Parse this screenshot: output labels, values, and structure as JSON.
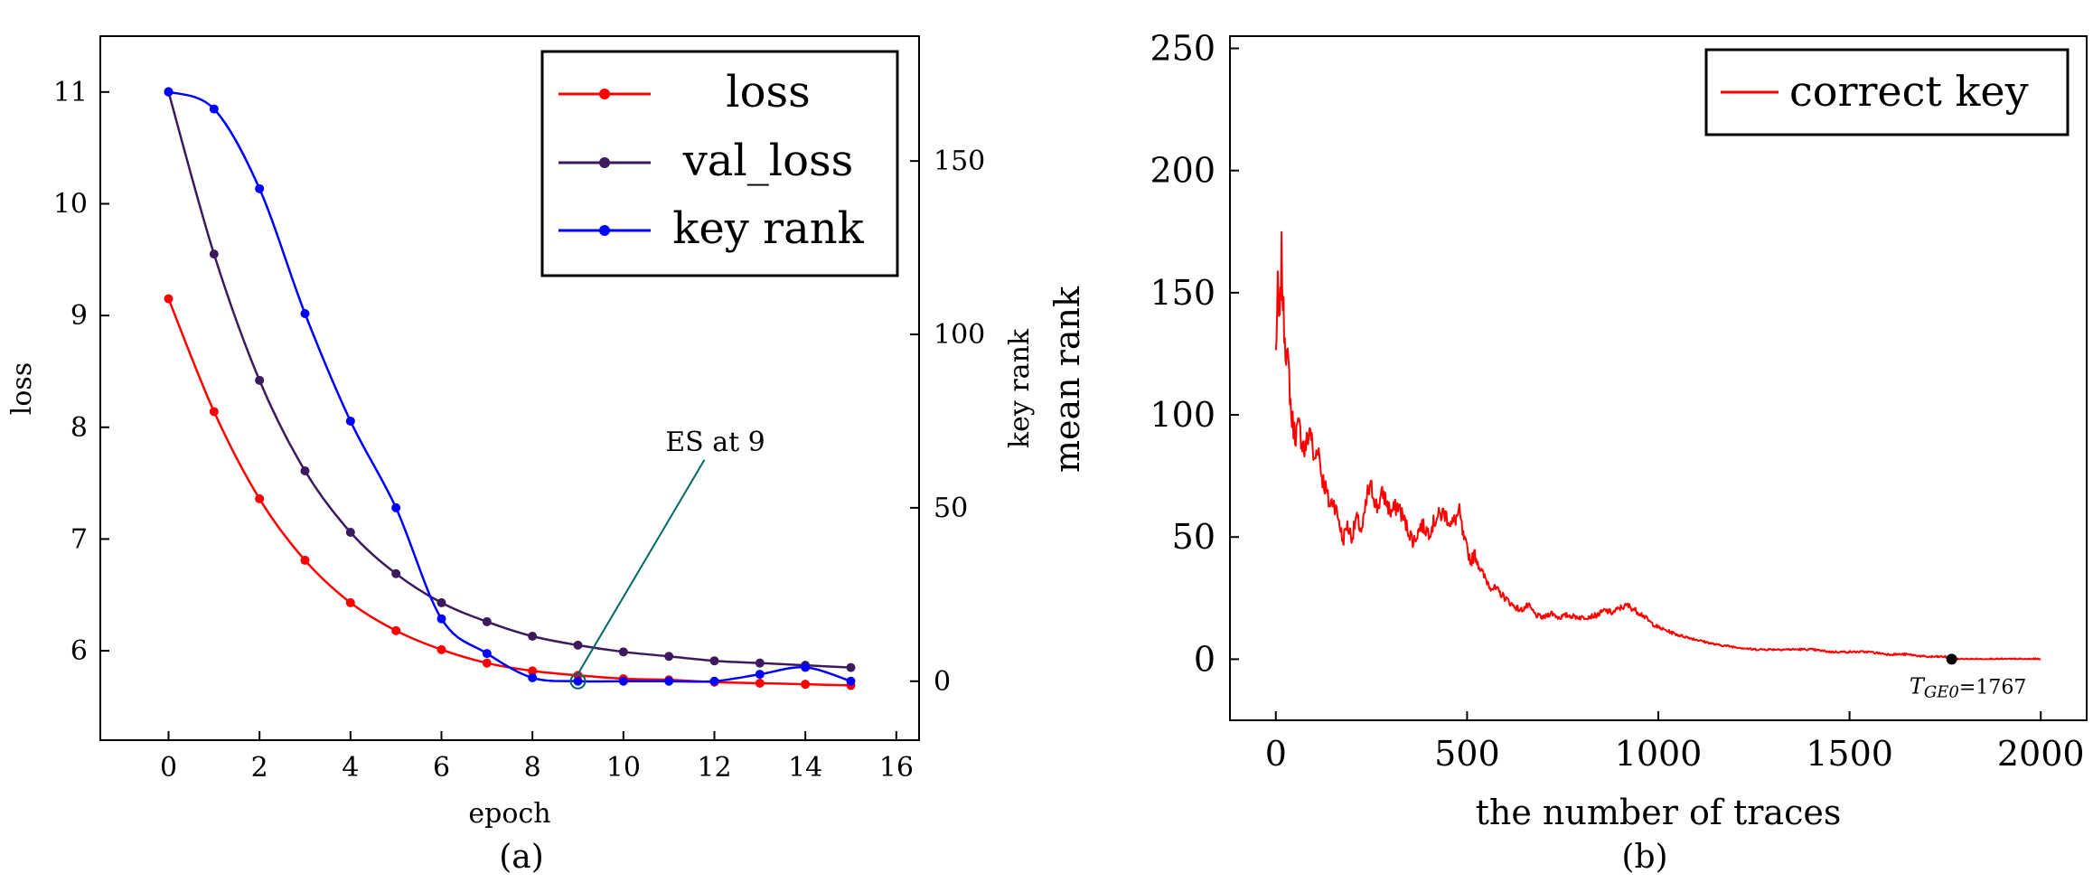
{
  "chart_data": [
    {
      "type": "line",
      "caption": "(a)",
      "xlabel": "epoch",
      "ylabel": "loss",
      "y2label": "key rank",
      "xlim": [
        -1.5,
        16.5
      ],
      "ylim": [
        5.2,
        11.5
      ],
      "y2lim": [
        -17,
        186
      ],
      "xticks": [
        0,
        2,
        4,
        6,
        8,
        10,
        12,
        14,
        16
      ],
      "yticks": [
        6,
        7,
        8,
        9,
        10,
        11
      ],
      "y2ticks": [
        0,
        50,
        100,
        150
      ],
      "legend_position": "top-right",
      "x": [
        0,
        1,
        2,
        3,
        4,
        5,
        6,
        7,
        8,
        9,
        10,
        11,
        12,
        13,
        14,
        15
      ],
      "series": [
        {
          "name": "loss",
          "axis": "left",
          "color": "#ff0000",
          "values": [
            9.15,
            8.14,
            7.36,
            6.81,
            6.43,
            6.18,
            6.01,
            5.89,
            5.82,
            5.78,
            5.75,
            5.74,
            5.72,
            5.71,
            5.7,
            5.69
          ]
        },
        {
          "name": "val_loss",
          "axis": "left",
          "color": "#3b1b5e",
          "values": [
            11.0,
            9.55,
            8.42,
            7.61,
            7.06,
            6.69,
            6.43,
            6.26,
            6.13,
            6.05,
            5.99,
            5.95,
            5.91,
            5.89,
            5.87,
            5.85
          ]
        },
        {
          "name": "key rank",
          "axis": "right",
          "color": "#0000ff",
          "values": [
            170,
            165,
            142,
            106,
            75,
            50,
            18,
            8,
            1,
            0,
            0,
            0,
            0,
            2,
            4,
            0
          ]
        }
      ],
      "annotation": {
        "text": "ES at 9",
        "x": 9,
        "key_rank": 0,
        "color": "#006666"
      }
    },
    {
      "type": "line",
      "caption": "(b)",
      "xlabel": "the number of traces",
      "ylabel": "mean rank",
      "xlim": [
        -120,
        2120
      ],
      "ylim": [
        -25,
        255
      ],
      "xticks": [
        0,
        500,
        1000,
        1500,
        2000
      ],
      "yticks": [
        0,
        50,
        100,
        150,
        200,
        250
      ],
      "legend_position": "top-right",
      "series": [
        {
          "name": "correct key",
          "color": "#ff0000",
          "anchors": [
            [
              0,
              125
            ],
            [
              5,
              150
            ],
            [
              10,
              135
            ],
            [
              15,
              165
            ],
            [
              20,
              140
            ],
            [
              25,
              130
            ],
            [
              35,
              115
            ],
            [
              40,
              100
            ],
            [
              50,
              92
            ],
            [
              60,
              95
            ],
            [
              75,
              85
            ],
            [
              90,
              95
            ],
            [
              100,
              80
            ],
            [
              110,
              88
            ],
            [
              120,
              75
            ],
            [
              130,
              70
            ],
            [
              140,
              63
            ],
            [
              150,
              65
            ],
            [
              165,
              57
            ],
            [
              175,
              48
            ],
            [
              185,
              55
            ],
            [
              200,
              50
            ],
            [
              210,
              58
            ],
            [
              225,
              52
            ],
            [
              240,
              68
            ],
            [
              250,
              70
            ],
            [
              265,
              62
            ],
            [
              280,
              68
            ],
            [
              300,
              60
            ],
            [
              320,
              63
            ],
            [
              340,
              55
            ],
            [
              360,
              48
            ],
            [
              380,
              55
            ],
            [
              400,
              52
            ],
            [
              420,
              58
            ],
            [
              440,
              60
            ],
            [
              460,
              55
            ],
            [
              480,
              60
            ],
            [
              490,
              50
            ],
            [
              500,
              45
            ],
            [
              510,
              40
            ],
            [
              520,
              43
            ],
            [
              540,
              35
            ],
            [
              560,
              30
            ],
            [
              580,
              28
            ],
            [
              600,
              25
            ],
            [
              620,
              22
            ],
            [
              640,
              20
            ],
            [
              660,
              22
            ],
            [
              680,
              18
            ],
            [
              700,
              17
            ],
            [
              720,
              19
            ],
            [
              740,
              17
            ],
            [
              760,
              18
            ],
            [
              800,
              17
            ],
            [
              840,
              18
            ],
            [
              860,
              20
            ],
            [
              880,
              19
            ],
            [
              900,
              21
            ],
            [
              920,
              22
            ],
            [
              940,
              20
            ],
            [
              960,
              18
            ],
            [
              980,
              15
            ],
            [
              1000,
              13
            ],
            [
              1050,
              10
            ],
            [
              1100,
              8
            ],
            [
              1150,
              6
            ],
            [
              1200,
              5
            ],
            [
              1250,
              4
            ],
            [
              1300,
              4
            ],
            [
              1350,
              4
            ],
            [
              1400,
              4
            ],
            [
              1450,
              3
            ],
            [
              1500,
              3
            ],
            [
              1550,
              3
            ],
            [
              1600,
              2
            ],
            [
              1650,
              2
            ],
            [
              1700,
              1
            ],
            [
              1750,
              1
            ],
            [
              1767,
              0
            ],
            [
              1800,
              0
            ],
            [
              1850,
              0
            ],
            [
              1900,
              0
            ],
            [
              1950,
              0
            ],
            [
              2000,
              0
            ]
          ]
        }
      ],
      "marker": {
        "x": 1767,
        "y": 0,
        "label_base": "T",
        "label_sub": "GE0",
        "label_rest": "=1767"
      }
    }
  ]
}
